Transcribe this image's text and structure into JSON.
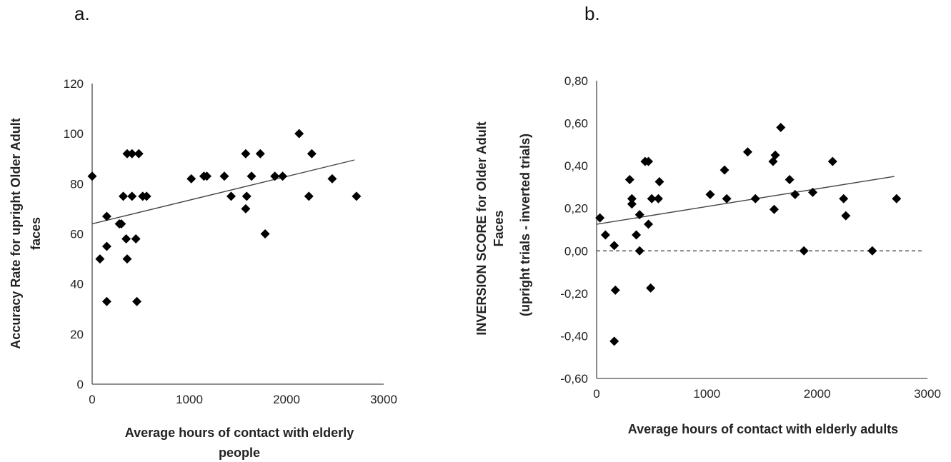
{
  "chart_data": [
    {
      "type": "scatter",
      "panel_label": "a.",
      "title": "",
      "xlabel_lines": [
        "Average hours of contact with elderly",
        "people"
      ],
      "ylabel_lines": [
        "Accuracy Rate for upright  Older Adult",
        "faces"
      ],
      "xlim": [
        0,
        3000
      ],
      "ylim": [
        0,
        120
      ],
      "x_ticks": [
        0,
        1000,
        2000,
        3000
      ],
      "y_ticks": [
        0,
        20,
        40,
        60,
        80,
        100,
        120
      ],
      "x_tick_labels": [
        "0",
        "1000",
        "2000",
        "3000"
      ],
      "y_tick_labels": [
        "0",
        "20",
        "40",
        "60",
        "80",
        "100",
        "120"
      ],
      "grid": false,
      "trendline": {
        "x": [
          0,
          2700
        ],
        "y": [
          64,
          89.5
        ]
      },
      "points": [
        {
          "x": 0,
          "y": 83
        },
        {
          "x": 80,
          "y": 50
        },
        {
          "x": 150,
          "y": 67
        },
        {
          "x": 150,
          "y": 55
        },
        {
          "x": 150,
          "y": 33
        },
        {
          "x": 280,
          "y": 64
        },
        {
          "x": 300,
          "y": 64
        },
        {
          "x": 320,
          "y": 75
        },
        {
          "x": 350,
          "y": 58
        },
        {
          "x": 360,
          "y": 50
        },
        {
          "x": 360,
          "y": 92
        },
        {
          "x": 410,
          "y": 92
        },
        {
          "x": 410,
          "y": 75
        },
        {
          "x": 450,
          "y": 58
        },
        {
          "x": 460,
          "y": 33
        },
        {
          "x": 480,
          "y": 92
        },
        {
          "x": 520,
          "y": 75
        },
        {
          "x": 560,
          "y": 75
        },
        {
          "x": 1020,
          "y": 82
        },
        {
          "x": 1150,
          "y": 83
        },
        {
          "x": 1180,
          "y": 83
        },
        {
          "x": 1360,
          "y": 83
        },
        {
          "x": 1430,
          "y": 75
        },
        {
          "x": 1580,
          "y": 92
        },
        {
          "x": 1580,
          "y": 70
        },
        {
          "x": 1590,
          "y": 75
        },
        {
          "x": 1640,
          "y": 83
        },
        {
          "x": 1730,
          "y": 92
        },
        {
          "x": 1780,
          "y": 60
        },
        {
          "x": 1880,
          "y": 83
        },
        {
          "x": 1960,
          "y": 83
        },
        {
          "x": 2130,
          "y": 100
        },
        {
          "x": 2230,
          "y": 75
        },
        {
          "x": 2260,
          "y": 92
        },
        {
          "x": 2470,
          "y": 82
        },
        {
          "x": 2720,
          "y": 75
        }
      ]
    },
    {
      "type": "scatter",
      "panel_label": "b.",
      "title": "",
      "xlabel_lines": [
        "Average hours of contact with elderly adults"
      ],
      "ylabel_lines": [
        "INVERSION SCORE for Older Adult",
        "Faces",
        "(upright trials - inverted trials)"
      ],
      "xlim": [
        0,
        3000
      ],
      "ylim": [
        -0.6,
        0.8
      ],
      "x_ticks": [
        0,
        1000,
        2000,
        3000
      ],
      "y_ticks": [
        -0.6,
        -0.4,
        -0.2,
        0,
        0.2,
        0.4,
        0.6,
        0.8
      ],
      "x_tick_labels": [
        "0",
        "1000",
        "2000",
        "3000"
      ],
      "y_tick_labels": [
        "-0,60",
        "-0,40",
        "-0,20",
        "0,00",
        "0,20",
        "0,40",
        "0,60",
        "0,80"
      ],
      "grid": false,
      "trendline": {
        "x": [
          0,
          2700
        ],
        "y": [
          0.125,
          0.35
        ]
      },
      "reference_line": {
        "y": 0,
        "x": [
          0,
          2950
        ],
        "style": "dashed"
      },
      "points": [
        {
          "x": 30,
          "y": 0.155
        },
        {
          "x": 80,
          "y": 0.075
        },
        {
          "x": 160,
          "y": 0.025
        },
        {
          "x": 170,
          "y": -0.185
        },
        {
          "x": 160,
          "y": -0.425
        },
        {
          "x": 300,
          "y": 0.335
        },
        {
          "x": 320,
          "y": 0.245
        },
        {
          "x": 320,
          "y": 0.22
        },
        {
          "x": 360,
          "y": 0.075
        },
        {
          "x": 390,
          "y": 0.17
        },
        {
          "x": 390,
          "y": 0.0
        },
        {
          "x": 440,
          "y": 0.42
        },
        {
          "x": 470,
          "y": 0.42
        },
        {
          "x": 470,
          "y": 0.125
        },
        {
          "x": 490,
          "y": -0.175
        },
        {
          "x": 500,
          "y": 0.245
        },
        {
          "x": 560,
          "y": 0.245
        },
        {
          "x": 570,
          "y": 0.325
        },
        {
          "x": 1030,
          "y": 0.265
        },
        {
          "x": 1160,
          "y": 0.38
        },
        {
          "x": 1180,
          "y": 0.245
        },
        {
          "x": 1370,
          "y": 0.465
        },
        {
          "x": 1440,
          "y": 0.245
        },
        {
          "x": 1600,
          "y": 0.42
        },
        {
          "x": 1610,
          "y": 0.195
        },
        {
          "x": 1620,
          "y": 0.45
        },
        {
          "x": 1670,
          "y": 0.58
        },
        {
          "x": 1750,
          "y": 0.335
        },
        {
          "x": 1800,
          "y": 0.265
        },
        {
          "x": 1880,
          "y": 0.0
        },
        {
          "x": 1960,
          "y": 0.275
        },
        {
          "x": 2140,
          "y": 0.42
        },
        {
          "x": 2240,
          "y": 0.245
        },
        {
          "x": 2260,
          "y": 0.165
        },
        {
          "x": 2500,
          "y": 0.0
        },
        {
          "x": 2720,
          "y": 0.245
        }
      ]
    }
  ]
}
